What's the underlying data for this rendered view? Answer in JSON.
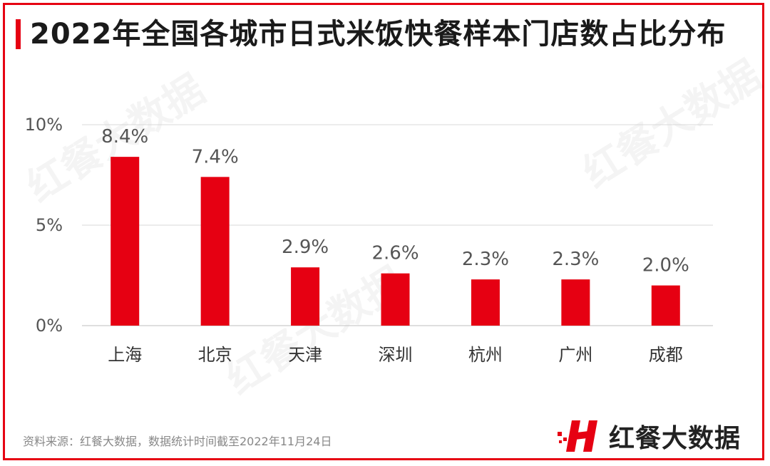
{
  "title": "2022年全国各城市日式米饭快餐样本门店数占比分布",
  "source": "资料来源：红餐大数据，数据统计时间截至2022年11月24日",
  "logo_text": "红餐大数据",
  "watermark_text": "红餐大数据",
  "colors": {
    "accent": "#e60012",
    "grid": "#d9d9d9",
    "label": "#555555"
  },
  "chart_data": {
    "type": "bar",
    "categories": [
      "上海",
      "北京",
      "天津",
      "深圳",
      "杭州",
      "广州",
      "成都"
    ],
    "values": [
      8.4,
      7.4,
      2.9,
      2.6,
      2.3,
      2.3,
      2.0
    ],
    "value_labels": [
      "8.4%",
      "7.4%",
      "2.9%",
      "2.6%",
      "2.3%",
      "2.3%",
      "2.0%"
    ],
    "yticks": [
      0,
      5,
      10
    ],
    "ytick_labels": [
      "0%",
      "5%",
      "10%"
    ],
    "ylim": [
      0,
      10
    ],
    "grid": true,
    "legend": "none"
  }
}
